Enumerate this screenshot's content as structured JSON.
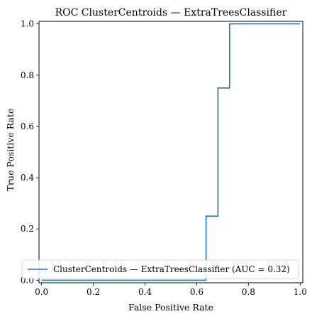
{
  "chart_data": {
    "type": "line",
    "title": "ROC ClusterCentroids — ExtraTreesClassifier",
    "xlabel": "False Positive Rate",
    "ylabel": "True Positive Rate",
    "xlim": [
      -0.01,
      1.01
    ],
    "ylim": [
      -0.01,
      1.01
    ],
    "xticks": [
      "0.0",
      "0.2",
      "0.4",
      "0.6",
      "0.8",
      "1.0"
    ],
    "yticks": [
      "0.0",
      "0.2",
      "0.4",
      "0.6",
      "0.8",
      "1.0"
    ],
    "grid": false,
    "legend_position": "lower right",
    "series": [
      {
        "name": "ClusterCentroids — ExtraTreesClassifier (AUC = 0.32)",
        "color": "#1f77b4",
        "x": [
          0.0,
          0.0,
          0.636,
          0.636,
          0.682,
          0.682,
          0.727,
          0.727,
          1.0
        ],
        "y": [
          0.0,
          0.0,
          0.0,
          0.25,
          0.25,
          0.75,
          0.75,
          1.0,
          1.0
        ]
      }
    ]
  }
}
